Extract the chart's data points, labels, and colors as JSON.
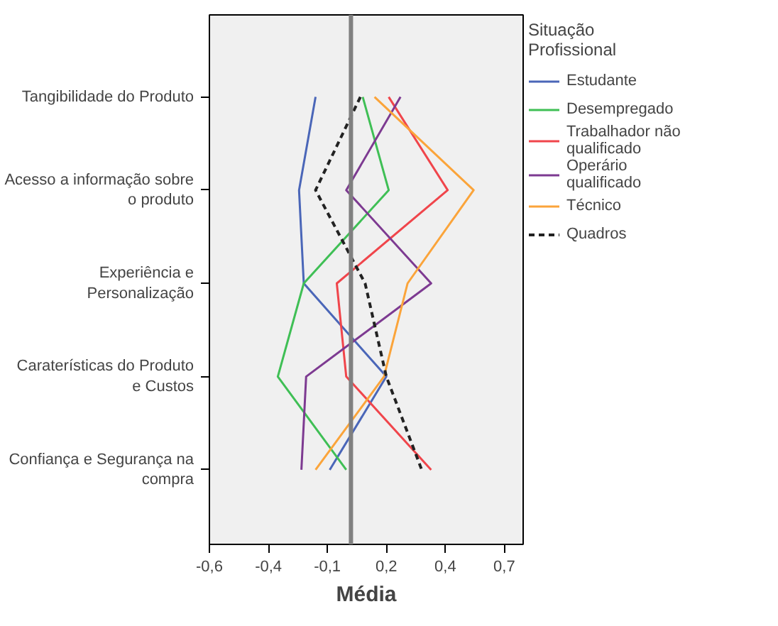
{
  "chart_data": {
    "type": "line",
    "xlabel": "Média",
    "legend_title": "Situação Profissional",
    "legend": "right",
    "grid": false,
    "orientation": "horizontal",
    "categories": [
      "Tangibilidade do Produto",
      "Acesso a informação sobre o produto",
      "Experiência e Personalização",
      "Caraterísticas do Produto e Custos",
      "Confiança e Segurança na compra"
    ],
    "xlim": [
      -0.6,
      0.73
    ],
    "xticks": [
      {
        "value": -0.6,
        "label": "-0,6"
      },
      {
        "value": -0.35,
        "label": "-0,4"
      },
      {
        "value": -0.1,
        "label": "-0,1"
      },
      {
        "value": 0.15,
        "label": "0,2"
      },
      {
        "value": 0.4,
        "label": "0,4"
      },
      {
        "value": 0.65,
        "label": "0,7"
      }
    ],
    "ref_lines": [
      {
        "axis": "x",
        "value": 0,
        "color": "#808080"
      }
    ],
    "series": [
      {
        "name": "Estudante",
        "color": "#4a66b8",
        "line_style": "solid",
        "values": [
          -0.15,
          -0.22,
          -0.2,
          0.15,
          -0.09
        ]
      },
      {
        "name": "Desempregado",
        "color": "#3fbf55",
        "line_style": "solid",
        "values": [
          0.05,
          0.16,
          -0.2,
          -0.31,
          -0.02
        ]
      },
      {
        "name": "Trabalhador não qualificado",
        "color": "#f0454b",
        "line_style": "solid",
        "values": [
          0.16,
          0.41,
          -0.06,
          -0.02,
          0.34
        ]
      },
      {
        "name": "Operário qualificado",
        "color": "#7d3a91",
        "line_style": "solid",
        "values": [
          0.21,
          -0.02,
          0.34,
          -0.19,
          -0.21
        ]
      },
      {
        "name": "Técnico",
        "color": "#fba43a",
        "line_style": "solid",
        "values": [
          0.1,
          0.52,
          0.24,
          0.14,
          -0.15
        ]
      },
      {
        "name": "Quadros",
        "color": "#222222",
        "line_style": "dashed",
        "values": [
          0.04,
          -0.15,
          0.06,
          0.15,
          0.3
        ]
      }
    ]
  }
}
